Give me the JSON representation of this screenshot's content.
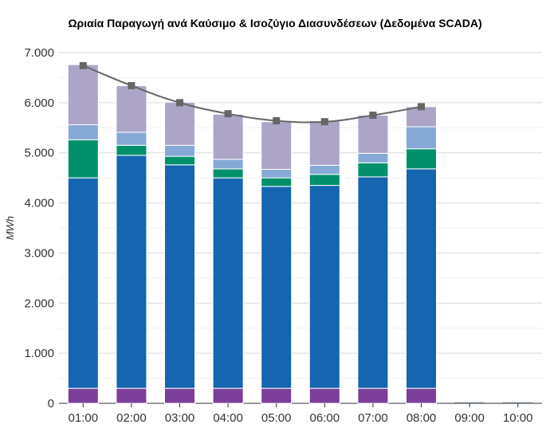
{
  "chart_data": {
    "type": "bar",
    "stacked": true,
    "title": "Ωριαία Παραγωγή ανά Καύσιμο & Ισοζύγιο Διασυνδέσεων (Δεδομένα SCADA)",
    "ylabel": "MWh",
    "xlabel": "",
    "ylim": [
      0,
      7000
    ],
    "yticks": [
      "0",
      "1.000",
      "2.000",
      "3.000",
      "4.000",
      "5.000",
      "6.000",
      "7.000"
    ],
    "ytick_values": [
      0,
      1000,
      2000,
      3000,
      4000,
      5000,
      6000,
      7000
    ],
    "categories": [
      "01:00",
      "02:00",
      "03:00",
      "04:00",
      "05:00",
      "06:00",
      "07:00",
      "08:00",
      "09:00",
      "10:00"
    ],
    "grid": true,
    "series": [
      {
        "color": "#7b3f99",
        "values": [
          300,
          300,
          300,
          300,
          300,
          300,
          300,
          300,
          0,
          0
        ]
      },
      {
        "color": "#1565b0",
        "values": [
          4200,
          4650,
          4460,
          4200,
          4030,
          4050,
          4220,
          4380,
          0,
          0
        ]
      },
      {
        "color": "#00916b",
        "values": [
          760,
          200,
          170,
          180,
          170,
          220,
          280,
          400,
          0,
          0
        ]
      },
      {
        "color": "#86a9d6",
        "values": [
          300,
          260,
          220,
          190,
          170,
          180,
          190,
          440,
          0,
          0
        ]
      },
      {
        "color": "#ada5c8",
        "values": [
          1200,
          930,
          860,
          900,
          950,
          890,
          760,
          400,
          0,
          0
        ]
      }
    ],
    "line": {
      "color": "#666666",
      "values": [
        6740,
        6340,
        6000,
        5780,
        5640,
        5620,
        5750,
        5920,
        null,
        null
      ]
    }
  }
}
